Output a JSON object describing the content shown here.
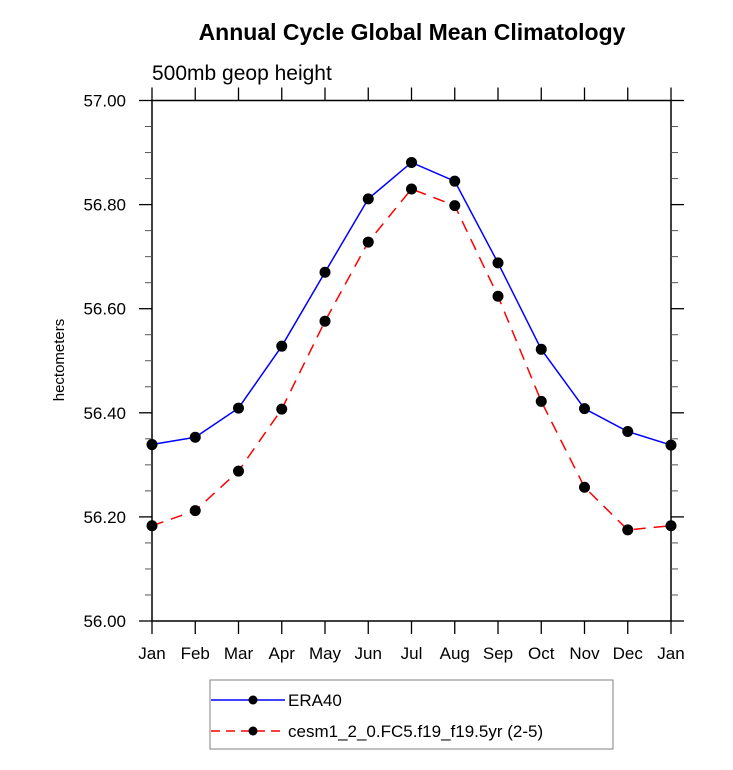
{
  "chart_data": {
    "type": "line",
    "title": "Annual Cycle Global Mean Climatology",
    "subtitle": "500mb geop height",
    "xlabel": "",
    "ylabel": "hectometers",
    "categories": [
      "Jan",
      "Feb",
      "Mar",
      "Apr",
      "May",
      "Jun",
      "Jul",
      "Aug",
      "Sep",
      "Oct",
      "Nov",
      "Dec",
      "Jan"
    ],
    "ylim": [
      56.0,
      57.0
    ],
    "yticks": [
      56.0,
      56.2,
      56.4,
      56.6,
      56.8,
      57.0
    ],
    "ytick_labels": [
      "56.00",
      "56.20",
      "56.40",
      "56.60",
      "56.80",
      "57.00"
    ],
    "y_minor_step": 0.05,
    "grid": false,
    "legend_position": "bottom",
    "series": [
      {
        "name": "ERA40",
        "color": "#0000ff",
        "line_style": "solid",
        "marker": "filled-circle",
        "marker_color": "#000000",
        "values": [
          56.339,
          56.353,
          56.409,
          56.528,
          56.67,
          56.811,
          56.881,
          56.845,
          56.688,
          56.522,
          56.408,
          56.364,
          56.338
        ]
      },
      {
        "name": "cesm1_2_0.FC5.f19_f19.5yr (2-5)",
        "color": "#ff0000",
        "line_style": "dashed",
        "marker": "filled-circle",
        "marker_color": "#000000",
        "values": [
          56.183,
          56.212,
          56.288,
          56.407,
          56.576,
          56.728,
          56.83,
          56.798,
          56.624,
          56.422,
          56.257,
          56.175,
          56.183
        ]
      }
    ]
  }
}
